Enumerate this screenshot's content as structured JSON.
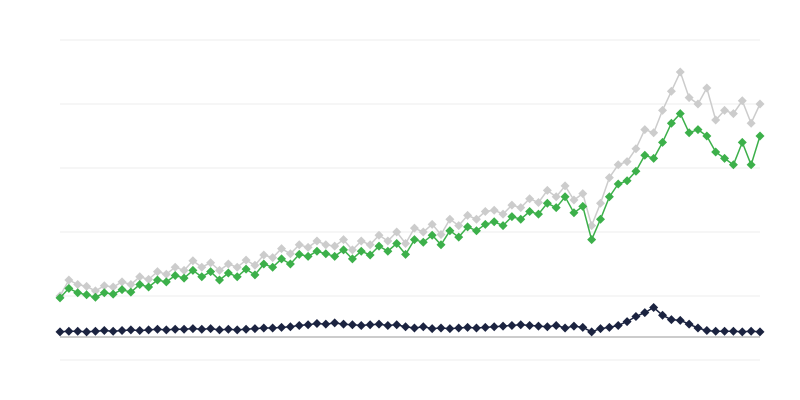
{
  "chart_data": {
    "type": "line",
    "categories": [
      null,
      null,
      null,
      null,
      null,
      null,
      null,
      null,
      null,
      null,
      null,
      null,
      null,
      null,
      null,
      null,
      null,
      null,
      null,
      null,
      null,
      null,
      null,
      null,
      null,
      null,
      null,
      null,
      null,
      null,
      null,
      null,
      null,
      null,
      null,
      null,
      null,
      null,
      null,
      null,
      null,
      null,
      null,
      null,
      null,
      null,
      null,
      null,
      null,
      null,
      null,
      null,
      null,
      null,
      null,
      null,
      null,
      null,
      null,
      null,
      null,
      null,
      null,
      null,
      null,
      null,
      null,
      null,
      null,
      null,
      null,
      null,
      null,
      null,
      null,
      null,
      null,
      null,
      null,
      null
    ],
    "series": [
      {
        "color": "#cccccc",
        "values": [
          1.0,
          1.25,
          1.18,
          1.15,
          1.08,
          1.16,
          1.14,
          1.22,
          1.18,
          1.3,
          1.26,
          1.38,
          1.34,
          1.45,
          1.4,
          1.55,
          1.45,
          1.52,
          1.4,
          1.5,
          1.45,
          1.56,
          1.48,
          1.64,
          1.6,
          1.74,
          1.66,
          1.8,
          1.76,
          1.86,
          1.8,
          1.78,
          1.88,
          1.72,
          1.86,
          1.8,
          1.95,
          1.86,
          2.0,
          1.82,
          2.06,
          2.0,
          2.12,
          1.96,
          2.2,
          2.1,
          2.26,
          2.2,
          2.32,
          2.34,
          2.28,
          2.42,
          2.38,
          2.52,
          2.46,
          2.65,
          2.55,
          2.72,
          2.5,
          2.6,
          2.1,
          2.45,
          2.85,
          3.05,
          3.1,
          3.3,
          3.6,
          3.55,
          3.9,
          4.2,
          4.5,
          4.1,
          4.0,
          4.25,
          3.75,
          3.9,
          3.85,
          4.05,
          3.7,
          4.0
        ]
      },
      {
        "color": "#3cb04a",
        "values": [
          0.97,
          1.12,
          1.05,
          1.02,
          0.98,
          1.05,
          1.03,
          1.1,
          1.06,
          1.18,
          1.14,
          1.25,
          1.22,
          1.32,
          1.28,
          1.4,
          1.3,
          1.38,
          1.25,
          1.36,
          1.3,
          1.42,
          1.33,
          1.5,
          1.45,
          1.58,
          1.5,
          1.65,
          1.62,
          1.7,
          1.66,
          1.62,
          1.72,
          1.58,
          1.7,
          1.64,
          1.78,
          1.7,
          1.82,
          1.65,
          1.88,
          1.84,
          1.95,
          1.8,
          2.02,
          1.92,
          2.08,
          2.02,
          2.12,
          2.16,
          2.1,
          2.24,
          2.2,
          2.32,
          2.28,
          2.45,
          2.38,
          2.55,
          2.3,
          2.4,
          1.88,
          2.2,
          2.55,
          2.75,
          2.8,
          2.95,
          3.2,
          3.15,
          3.4,
          3.7,
          3.85,
          3.55,
          3.6,
          3.5,
          3.25,
          3.15,
          3.05,
          3.4,
          3.05,
          3.5
        ]
      },
      {
        "color": "#1b2340",
        "values": [
          0.44,
          0.45,
          0.45,
          0.44,
          0.45,
          0.46,
          0.45,
          0.46,
          0.47,
          0.46,
          0.47,
          0.48,
          0.47,
          0.48,
          0.48,
          0.49,
          0.48,
          0.49,
          0.47,
          0.48,
          0.47,
          0.48,
          0.49,
          0.5,
          0.5,
          0.51,
          0.52,
          0.54,
          0.55,
          0.57,
          0.56,
          0.58,
          0.56,
          0.55,
          0.54,
          0.55,
          0.56,
          0.54,
          0.55,
          0.52,
          0.5,
          0.52,
          0.49,
          0.5,
          0.49,
          0.5,
          0.51,
          0.5,
          0.51,
          0.52,
          0.53,
          0.54,
          0.55,
          0.54,
          0.53,
          0.52,
          0.54,
          0.5,
          0.53,
          0.51,
          0.44,
          0.49,
          0.51,
          0.54,
          0.6,
          0.68,
          0.74,
          0.82,
          0.7,
          0.63,
          0.62,
          0.56,
          0.5,
          0.46,
          0.45,
          0.45,
          0.45,
          0.44,
          0.45,
          0.44
        ]
      }
    ],
    "ylim": [
      0,
      5
    ],
    "yticks": [
      0,
      1,
      2,
      3,
      4,
      5
    ],
    "grid": true,
    "baseline": 0.36
  }
}
